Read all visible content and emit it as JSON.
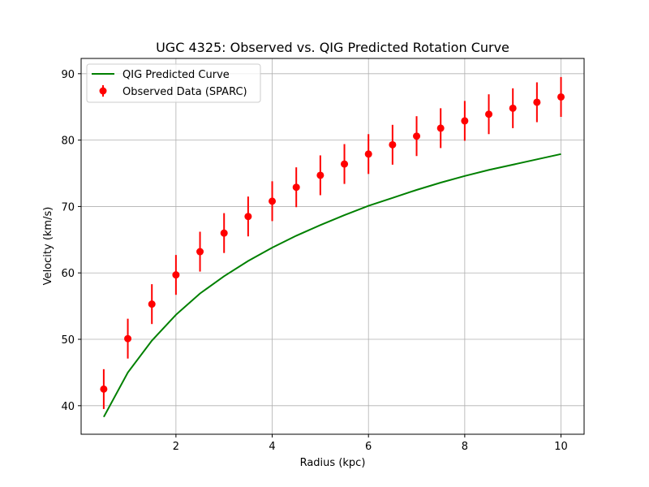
{
  "chart_data": {
    "type": "line",
    "title": "UGC 4325: Observed vs. QIG Predicted Rotation Curve",
    "xlabel": "Radius (kpc)",
    "ylabel": "Velocity (km/s)",
    "xlim": [
      0.03,
      10.48
    ],
    "ylim": [
      35.7,
      92.3
    ],
    "xticks": [
      2,
      4,
      6,
      8,
      10
    ],
    "yticks": [
      40,
      50,
      60,
      70,
      80,
      90
    ],
    "grid": true,
    "legend_position": "upper-left",
    "series": [
      {
        "name": "QIG Predicted Curve",
        "kind": "line",
        "color": "#008000",
        "x": [
          0.5,
          1.0,
          1.5,
          2.0,
          2.5,
          3.0,
          3.5,
          4.0,
          4.5,
          5.0,
          5.5,
          6.0,
          6.5,
          7.0,
          7.5,
          8.0,
          8.5,
          9.0,
          9.5,
          10.0
        ],
        "y": [
          38.3,
          45.0,
          49.8,
          53.7,
          56.9,
          59.5,
          61.8,
          63.8,
          65.6,
          67.2,
          68.7,
          70.1,
          71.3,
          72.5,
          73.6,
          74.6,
          75.5,
          76.3,
          77.1,
          77.9
        ]
      },
      {
        "name": "Observed Data (SPARC)",
        "kind": "errorbar",
        "color": "#ff0000",
        "x": [
          0.5,
          1.0,
          1.5,
          2.0,
          2.5,
          3.0,
          3.5,
          4.0,
          4.5,
          5.0,
          5.5,
          6.0,
          6.5,
          7.0,
          7.5,
          8.0,
          8.5,
          9.0,
          9.5,
          10.0
        ],
        "y": [
          42.5,
          50.1,
          55.3,
          59.7,
          63.2,
          66.0,
          68.5,
          70.8,
          72.9,
          74.7,
          76.4,
          77.9,
          79.3,
          80.6,
          81.8,
          82.9,
          83.9,
          84.8,
          85.7,
          86.5
        ],
        "yerr": [
          3,
          3,
          3,
          3,
          3,
          3,
          3,
          3,
          3,
          3,
          3,
          3,
          3,
          3,
          3,
          3,
          3,
          3,
          3,
          3
        ]
      }
    ]
  }
}
